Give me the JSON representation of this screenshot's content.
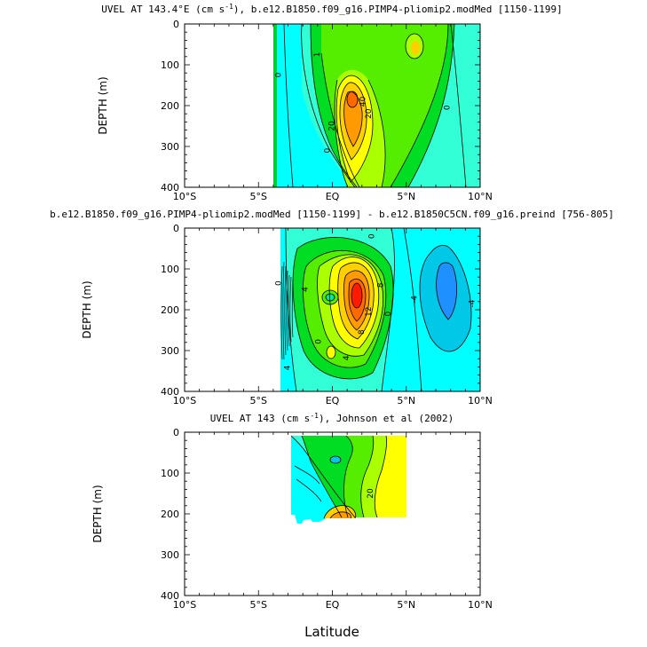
{
  "figure": {
    "xlabel": "Latitude"
  },
  "colors": {
    "blue": "#1e90ff",
    "cyan_dark": "#00c8e6",
    "cyan": "#00ffff",
    "cyan_light": "#33ffe0",
    "teal": "#00e6a0",
    "green": "#00dd22",
    "light_green": "#55ee00",
    "yellowgreen": "#aaff00",
    "yellow": "#ffff00",
    "gold": "#ffd000",
    "orange": "#ff9a00",
    "orange_dark": "#ff6a00",
    "red": "#ff1a00"
  },
  "chart_data": [
    {
      "type": "heatmap",
      "title": "UVEL AT 143.4°E (cm s⁻¹), b.e12.B1850.f09_g16.PIMP4-pliomip2.modMed [1150-1199]",
      "title_prefix": "UVEL AT 143.4°E (cm s",
      "title_sup": "-1",
      "title_suffix": "), b.e12.B1850.f09_g16.PIMP4-pliomip2.modMed [1150-1199]",
      "ylabel": "DEPTH (m)",
      "xlim": [
        -10,
        10
      ],
      "ylim": [
        400,
        0
      ],
      "data_xlim": [
        -5.4,
        10
      ],
      "x_ticks": [
        -10,
        -5,
        0,
        5,
        10
      ],
      "x_tick_labels": [
        "10°S",
        "5°S",
        "EQ",
        "5°N",
        "10°N"
      ],
      "y_ticks": [
        0,
        100,
        200,
        300,
        400
      ],
      "y_tick_labels": [
        "0",
        "100",
        "200",
        "300",
        "400"
      ],
      "contour_interval": 10,
      "contour_labels": [
        {
          "x": -3.6,
          "y": 125,
          "text": "0"
        },
        {
          "x": -1.0,
          "y": 75,
          "text": "1"
        },
        {
          "x": 0.0,
          "y": 250,
          "text": "20"
        },
        {
          "x": 2.1,
          "y": 190,
          "text": "40"
        },
        {
          "x": 2.5,
          "y": 220,
          "text": "20"
        },
        {
          "x": -0.3,
          "y": 310,
          "text": "0"
        },
        {
          "x": 7.8,
          "y": 205,
          "text": "0"
        }
      ]
    },
    {
      "type": "heatmap",
      "title": "b.e12.B1850.f09_g16.PIMP4-pliomip2.modMed [1150-1199] - b.e12.B1850C5CN.f09_g16.preind [756-805]",
      "ylabel": "DEPTH (m)",
      "xlim": [
        -10,
        10
      ],
      "ylim": [
        400,
        0
      ],
      "data_xlim": [
        -3.8,
        10
      ],
      "x_ticks": [
        -10,
        -5,
        0,
        5,
        10
      ],
      "x_tick_labels": [
        "10°S",
        "5°S",
        "EQ",
        "5°N",
        "10°N"
      ],
      "y_ticks": [
        0,
        100,
        200,
        300,
        400
      ],
      "y_tick_labels": [
        "0",
        "100",
        "200",
        "300",
        "400"
      ],
      "contour_interval": 2,
      "contour_labels": [
        {
          "x": -3.6,
          "y": 135,
          "text": "0"
        },
        {
          "x": -1.8,
          "y": 150,
          "text": "4"
        },
        {
          "x": 3.3,
          "y": 140,
          "text": "8"
        },
        {
          "x": 2.5,
          "y": 205,
          "text": "12"
        },
        {
          "x": 2.0,
          "y": 255,
          "text": "8"
        },
        {
          "x": 3.8,
          "y": 210,
          "text": "0"
        },
        {
          "x": 2.7,
          "y": 20,
          "text": "0"
        },
        {
          "x": -0.9,
          "y": 278,
          "text": "0"
        },
        {
          "x": 1.0,
          "y": 318,
          "text": "4"
        },
        {
          "x": -3.0,
          "y": 342,
          "text": "4"
        },
        {
          "x": 5.6,
          "y": 175,
          "text": "-4"
        },
        {
          "x": 9.5,
          "y": 185,
          "text": "-4"
        }
      ]
    },
    {
      "type": "heatmap",
      "title": "UVEL AT 143 (cm s⁻¹), Johnson et al (2002)",
      "title_prefix": "UVEL AT 143 (cm s",
      "title_sup": "-1",
      "title_suffix": "), Johnson et al (2002)",
      "ylabel": "DEPTH (m)",
      "xlim": [
        -10,
        10
      ],
      "ylim": [
        400,
        0
      ],
      "data_xlim": [
        -2.8,
        5
      ],
      "data_ylim": [
        0,
        220
      ],
      "x_ticks": [
        -10,
        -5,
        0,
        5,
        10
      ],
      "x_tick_labels": [
        "10°S",
        "5°S",
        "EQ",
        "5°N",
        "10°N"
      ],
      "y_ticks": [
        0,
        100,
        200,
        300,
        400
      ],
      "y_tick_labels": [
        "0",
        "100",
        "200",
        "300",
        "400"
      ],
      "contour_interval": 10,
      "contour_labels": [
        {
          "x": 2.6,
          "y": 150,
          "text": "20"
        }
      ]
    }
  ]
}
